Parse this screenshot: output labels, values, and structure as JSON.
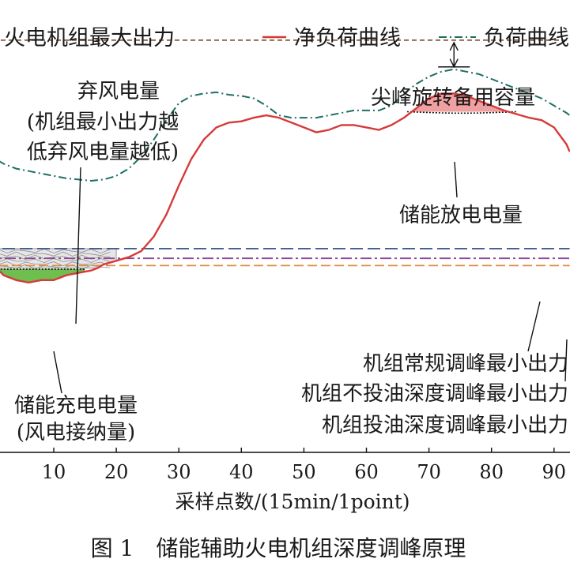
{
  "chart_data": {
    "type": "line",
    "caption": "图 1　储能辅助火电机组深度调峰原理",
    "xlabel": "采样点数/(15min/1point)",
    "xlim": [
      -1,
      92.5
    ],
    "x_ticks": [
      10,
      20,
      30,
      40,
      50,
      60,
      70,
      80,
      90
    ],
    "y_ticks_shown": false,
    "legend_position": "top",
    "colors": {
      "net_load": "#d63a3a",
      "load": "#1f6e64",
      "max_output": "#8a5a3a",
      "conventional_min": "#3d5f8f",
      "no_oil_min": "#8b4a9a",
      "oil_min": "#e08a40",
      "charge_fill": "#6fbf4f",
      "discharge_fill": "#f0a0a0"
    },
    "series": [
      {
        "name": "净负荷曲线",
        "x": [
          -1,
          0,
          2,
          4,
          6,
          8,
          10,
          12,
          14,
          16,
          17,
          18,
          20,
          22,
          24,
          26,
          28,
          30,
          32,
          34,
          36,
          38,
          40,
          42,
          44,
          46,
          48,
          50,
          52,
          54,
          56,
          58,
          60,
          62,
          64,
          66,
          68,
          70,
          72,
          74,
          76,
          78,
          80,
          82,
          84,
          86,
          88,
          90,
          92,
          92.5
        ],
        "y": [
          41,
          38,
          33,
          31,
          30,
          31,
          31,
          33,
          34,
          35,
          36,
          37.5,
          39,
          40.5,
          43,
          49,
          58,
          70,
          81,
          89,
          94,
          96,
          96.5,
          98,
          99,
          98,
          96,
          94,
          92,
          93,
          95,
          95,
          94,
          93,
          95,
          98,
          102,
          106,
          108,
          108,
          107,
          105,
          103,
          101,
          99.5,
          98,
          97,
          94,
          87,
          84
        ]
      },
      {
        "name": "负荷曲线",
        "x": [
          -1,
          0,
          2,
          4,
          6,
          8,
          10,
          12,
          14,
          16,
          18,
          20,
          22,
          24,
          26,
          28,
          30,
          32,
          34,
          36,
          38,
          40,
          42,
          44,
          46,
          48,
          50,
          52,
          54,
          56,
          58,
          60,
          62,
          64,
          66,
          68,
          70,
          72,
          74,
          76,
          78,
          80,
          82,
          84,
          86,
          88,
          90,
          92,
          92.5
        ],
        "y": [
          84,
          82,
          79,
          77,
          76,
          75,
          74,
          73,
          72.5,
          72,
          72.5,
          74,
          77,
          82,
          89,
          97,
          104,
          107,
          108,
          108.5,
          107.5,
          107,
          106,
          103,
          99,
          98,
          98,
          98,
          99,
          100,
          101,
          101,
          101,
          103,
          108,
          112,
          115,
          117,
          118,
          117,
          116,
          114,
          112,
          110,
          108,
          106,
          103,
          100,
          99
        ]
      }
    ],
    "reference_lines": [
      {
        "name": "火电机组最大出力",
        "y": 130
      },
      {
        "name": "机组常规调峰最小出力",
        "y": 44
      },
      {
        "name": "机组不投油深度调峰最小出力",
        "y": 40
      },
      {
        "name": "机组投油深度调峰最小出力",
        "y": 37
      }
    ],
    "shaded_regions": [
      {
        "name": "储能充电电量(风电接纳量)",
        "x_range": [
          1,
          15
        ]
      },
      {
        "name": "弃风电量",
        "x_range": [
          -1,
          20
        ]
      },
      {
        "name": "储能放电电量",
        "x_range": [
          66.5,
          84
        ]
      }
    ],
    "legend": {
      "max_output": "火电机组最大出力",
      "net_load": "净负荷曲线",
      "load": "负荷曲线"
    },
    "annotations": {
      "curtail_title": "弃风电量",
      "curtail_note_1": "(机组最小出力越",
      "curtail_note_2": "低弃风电量越低)",
      "peak_reserve": "尖峰旋转备用容量",
      "discharge": "储能放电电量",
      "charge_1": "储能充电电量",
      "charge_2": "(风电接纳量)",
      "conventional_min": "机组常规调峰最小出力",
      "no_oil_min": "机组不投油深度调峰最小出力",
      "oil_min": "机组投油深度调峰最小出力"
    }
  }
}
